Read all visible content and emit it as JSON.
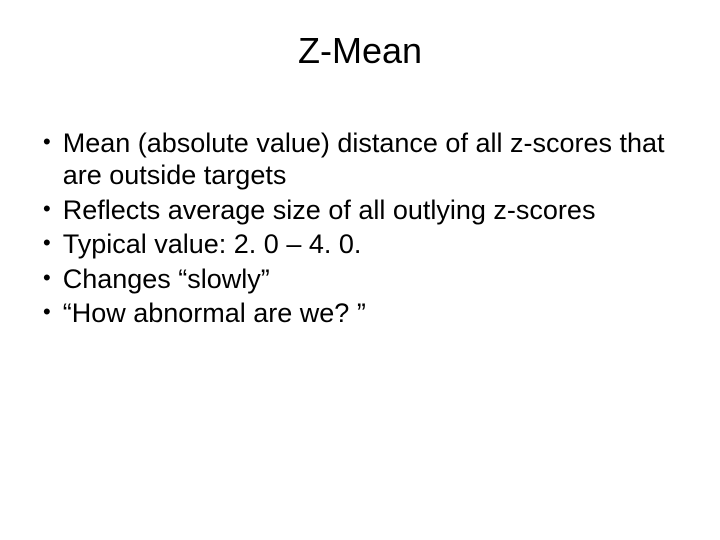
{
  "slide": {
    "title": "Z-Mean",
    "title_fontsize": 36,
    "title_color": "#000000",
    "title_align": "center",
    "background_color": "#ffffff",
    "bullets": [
      "Mean (absolute value) distance of all z-scores that are outside targets",
      "Reflects average size of all outlying z-scores",
      "Typical value: 2. 0 – 4. 0.",
      "Changes “slowly”",
      "“How abnormal are we? ”"
    ],
    "bullet_fontsize": 27,
    "bullet_color": "#000000",
    "bullet_marker": "•",
    "font_family": "Arial"
  }
}
